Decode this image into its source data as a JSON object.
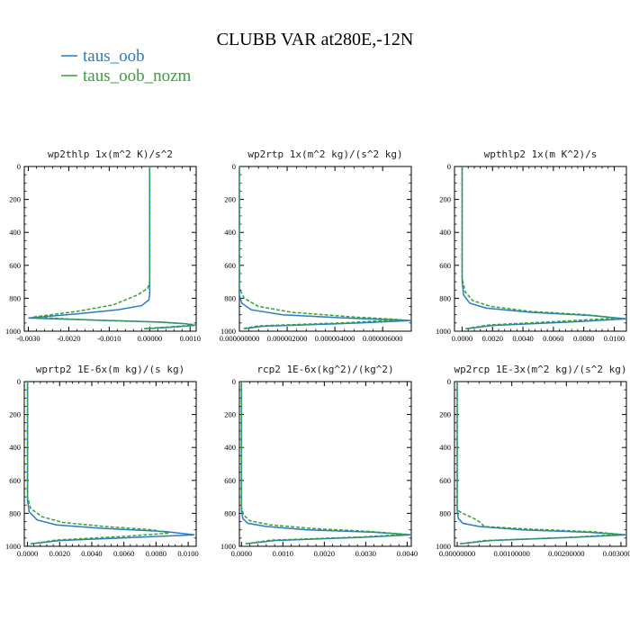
{
  "figure": {
    "title": "CLUBB VAR at280E,-12N",
    "legend": [
      {
        "label": "taus_oob",
        "color": "#2b7bc0",
        "style": "solid"
      },
      {
        "label": "taus_oob_nozm",
        "color": "#33a333",
        "style": "dashed"
      }
    ]
  },
  "chart_data": [
    {
      "type": "line",
      "title": "wp2thlp  1x(m^2 K)/s^2",
      "xlabel": "",
      "ylabel": "",
      "xlim": [
        -0.0031,
        0.00115
      ],
      "ylim": [
        1000,
        0
      ],
      "xticks": [
        -0.003,
        -0.002,
        -0.001,
        0.0,
        0.001
      ],
      "xtick_labels": [
        "-0.0030",
        "-0.0020",
        "-0.0010",
        "0.00000",
        "0.0010"
      ],
      "yticks": [
        0,
        200,
        400,
        600,
        800,
        1000
      ],
      "ytick_labels": [
        "0",
        "200",
        "400",
        "600",
        "800",
        "1000"
      ],
      "series": [
        {
          "name": "taus_oob",
          "x": [
            0.0,
            0.0,
            0.0,
            0.0,
            0.0,
            0.0,
            -2e-05,
            -0.0002,
            -0.0008,
            -0.0018,
            -0.003,
            -0.001,
            0.0003,
            0.0009,
            0.0011,
            0.0006,
            -0.0001
          ],
          "y": [
            0,
            200,
            400,
            600,
            700,
            780,
            810,
            845,
            870,
            895,
            920,
            935,
            945,
            955,
            965,
            975,
            985
          ]
        },
        {
          "name": "taus_oob_nozm",
          "x": [
            0.0,
            0.0,
            0.0,
            0.0,
            0.0,
            -5e-05,
            -0.0003,
            -0.0009,
            -0.0018,
            -0.0029,
            -0.0012,
            0.0002,
            0.0009,
            0.0012,
            0.0006,
            -0.0002
          ],
          "y": [
            0,
            200,
            400,
            600,
            700,
            740,
            780,
            840,
            880,
            915,
            935,
            945,
            955,
            962,
            972,
            985
          ]
        }
      ]
    },
    {
      "type": "line",
      "title": "wp2rtp  1x(m^2 kg)/(s^2 kg)",
      "xlabel": "",
      "ylabel": "",
      "xlim": [
        0.0,
        7.2e-06
      ],
      "ylim": [
        1000,
        0
      ],
      "xticks": [
        0.0,
        2e-06,
        4e-06,
        6e-06
      ],
      "xtick_labels": [
        "0.000000000",
        "0.000002000",
        "0.000004000",
        "0.000006000"
      ],
      "yticks": [
        0,
        200,
        400,
        600,
        800,
        1000
      ],
      "ytick_labels": [
        "0",
        "200",
        "400",
        "600",
        "800",
        "1000"
      ],
      "series": [
        {
          "name": "taus_oob",
          "x": [
            0.0,
            0.0,
            0.0,
            1e-07,
            5e-07,
            1.8e-06,
            4.5e-06,
            7.2e-06,
            5e-06,
            1e-06,
            2e-07
          ],
          "y": [
            0,
            500,
            780,
            830,
            870,
            900,
            920,
            935,
            950,
            970,
            985
          ]
        },
        {
          "name": "taus_oob_nozm",
          "x": [
            0.0,
            0.0,
            0.0,
            2e-07,
            8e-07,
            2.2e-06,
            4.6e-06,
            6.8e-06,
            4.5e-06,
            8e-07,
            1e-07
          ],
          "y": [
            0,
            500,
            740,
            800,
            850,
            885,
            912,
            930,
            948,
            968,
            985
          ]
        }
      ]
    },
    {
      "type": "line",
      "title": "wpthlp2  1x(m K^2)/s",
      "xlabel": "",
      "ylabel": "",
      "xlim": [
        -0.0005,
        0.0108
      ],
      "ylim": [
        1000,
        0
      ],
      "xticks": [
        0.0,
        0.002,
        0.004,
        0.006,
        0.008,
        0.01
      ],
      "xtick_labels": [
        "0.0000",
        "0.0020",
        "0.0040",
        "0.0060",
        "0.0080",
        "0.0100"
      ],
      "yticks": [
        0,
        200,
        400,
        600,
        800,
        1000
      ],
      "ytick_labels": [
        "0",
        "200",
        "400",
        "600",
        "800",
        "1000"
      ],
      "series": [
        {
          "name": "taus_oob",
          "x": [
            0.0,
            0.0,
            0.0,
            0.0001,
            0.0005,
            0.0016,
            0.0045,
            0.0085,
            0.0108,
            0.007,
            0.002,
            0.0003
          ],
          "y": [
            0,
            400,
            700,
            780,
            830,
            860,
            885,
            905,
            925,
            945,
            965,
            985
          ]
        },
        {
          "name": "taus_oob_nozm",
          "x": [
            0.0,
            0.0,
            0.0,
            0.0002,
            0.0007,
            0.0019,
            0.0045,
            0.0082,
            0.0102,
            0.0065,
            0.0018,
            0.0002
          ],
          "y": [
            0,
            400,
            680,
            760,
            815,
            850,
            880,
            900,
            920,
            940,
            962,
            985
          ]
        }
      ]
    },
    {
      "type": "line",
      "title": "wprtp2  1E-6x(m kg)/(s kg)",
      "xlabel": "",
      "ylabel": "",
      "xlim": [
        -0.0002,
        0.0105
      ],
      "ylim": [
        1000,
        0
      ],
      "xticks": [
        0.0,
        0.002,
        0.004,
        0.006,
        0.008,
        0.01
      ],
      "xtick_labels": [
        "0.0000",
        "0.0020",
        "0.0040",
        "0.0060",
        "0.0080",
        "0.0100"
      ],
      "yticks": [
        0,
        200,
        400,
        600,
        800,
        1000
      ],
      "ytick_labels": [
        "0",
        "200",
        "400",
        "600",
        "800",
        "1000"
      ],
      "series": [
        {
          "name": "taus_oob",
          "x": [
            0.0,
            0.0,
            0.0,
            0.0001,
            0.0006,
            0.0018,
            0.0045,
            0.0085,
            0.0104,
            0.007,
            0.002,
            0.0002
          ],
          "y": [
            0,
            400,
            720,
            790,
            840,
            870,
            890,
            910,
            930,
            945,
            965,
            985
          ]
        },
        {
          "name": "taus_oob_nozm",
          "x": [
            0.0,
            0.0,
            0.0,
            0.0002,
            0.0009,
            0.0022,
            0.0048,
            0.0078,
            0.0088,
            0.006,
            0.0018,
            0.0002
          ],
          "y": [
            0,
            400,
            700,
            770,
            820,
            855,
            880,
            900,
            920,
            940,
            962,
            985
          ]
        }
      ]
    },
    {
      "type": "line",
      "title": "rcp2  1E-6x(kg^2)/(kg^2)",
      "xlabel": "",
      "ylabel": "",
      "xlim": [
        -5e-05,
        0.0041
      ],
      "ylim": [
        1000,
        0
      ],
      "xticks": [
        0.0,
        0.001,
        0.002,
        0.003,
        0.004
      ],
      "xtick_labels": [
        "0.0000",
        "0.0010",
        "0.0020",
        "0.0030",
        "0.0040"
      ],
      "yticks": [
        0,
        200,
        400,
        600,
        800,
        1000
      ],
      "ytick_labels": [
        "0",
        "200",
        "400",
        "600",
        "800",
        "1000"
      ],
      "series": [
        {
          "name": "taus_oob",
          "x": [
            0.0,
            0.0,
            0.0,
            3e-05,
            0.00015,
            0.0006,
            0.0016,
            0.0032,
            0.0041,
            0.003,
            0.0008,
            0.0001
          ],
          "y": [
            0,
            500,
            780,
            830,
            860,
            880,
            900,
            915,
            930,
            945,
            965,
            985
          ]
        },
        {
          "name": "taus_oob_nozm",
          "x": [
            0.0,
            0.0,
            0.0,
            5e-05,
            0.0002,
            0.0007,
            0.0017,
            0.0031,
            0.004,
            0.0029,
            0.0007,
            0.0001
          ],
          "y": [
            0,
            500,
            760,
            810,
            845,
            870,
            892,
            910,
            928,
            943,
            963,
            985
          ]
        }
      ]
    },
    {
      "type": "line",
      "title": "wp2rcp  1E-3x(m^2 kg)/(s^2 kg)",
      "xlabel": "",
      "ylabel": "",
      "xlim": [
        -5e-05,
        0.0031
      ],
      "ylim": [
        1000,
        0
      ],
      "xticks": [
        0.0,
        0.001,
        0.002,
        0.003
      ],
      "xtick_labels": [
        "0.00000000",
        "0.00100000",
        "0.00200000",
        "0.00300000"
      ],
      "yticks": [
        0,
        200,
        400,
        600,
        800,
        1000
      ],
      "ytick_labels": [
        "0",
        "200",
        "400",
        "600",
        "800",
        "1000"
      ],
      "series": [
        {
          "name": "taus_oob",
          "x": [
            0.0,
            0.0,
            0.0,
            2e-05,
            0.0001,
            0.0004,
            0.0012,
            0.0024,
            0.0031,
            0.0022,
            0.0006,
            5e-05
          ],
          "y": [
            0,
            500,
            780,
            830,
            860,
            880,
            900,
            915,
            930,
            945,
            965,
            985
          ]
        },
        {
          "name": "taus_oob_nozm",
          "x": [
            0.0,
            0.0,
            0.0,
            0.0001,
            0.0003,
            0.0004,
            0.0005,
            0.0013,
            0.0025,
            0.003,
            0.0021,
            0.0005,
            5e-05
          ],
          "y": [
            0,
            500,
            780,
            800,
            830,
            850,
            880,
            895,
            912,
            928,
            945,
            965,
            985
          ]
        }
      ]
    }
  ]
}
